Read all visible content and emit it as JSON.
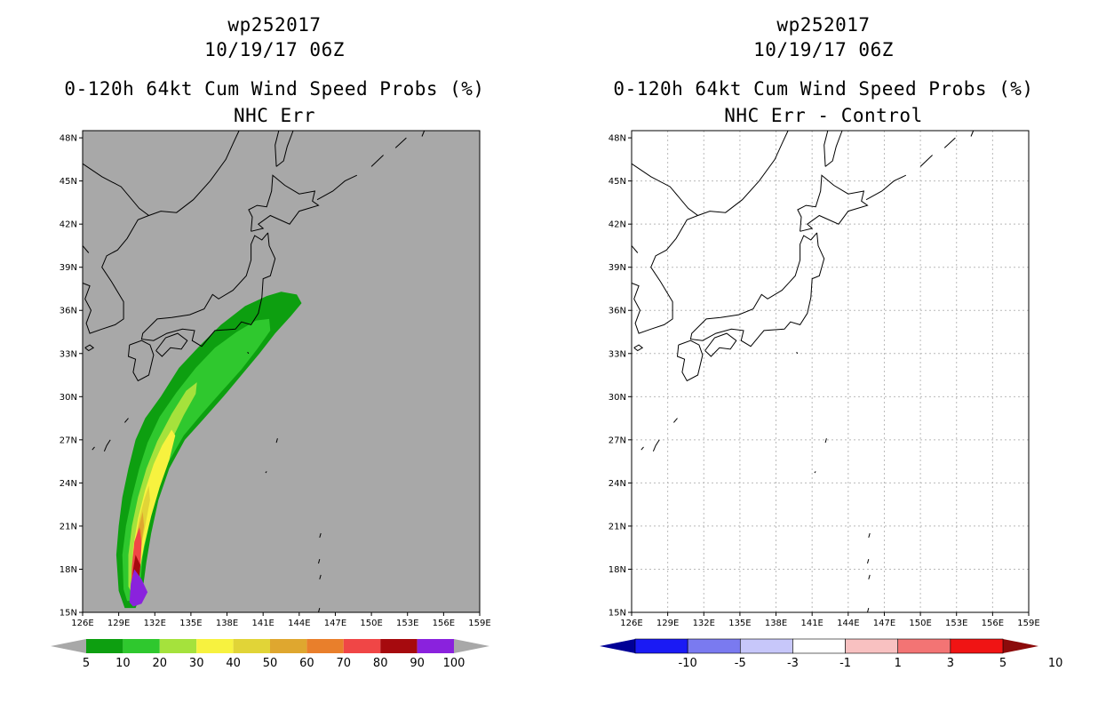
{
  "colors": {
    "ocean_left": "#a8a8a8",
    "coast": "#000000",
    "grid": "#b9b9b9",
    "prob_colors": [
      "#0d9f10",
      "#2fc82e",
      "#a5e23c",
      "#f7f23f",
      "#e1d437",
      "#dfa72f",
      "#e97f2b",
      "#f04646",
      "#a60a0e",
      "#8a22dd"
    ],
    "diff_colors": [
      "#000096",
      "#1a1af5",
      "#7a7af0",
      "#c7c7fa",
      "#ffffff",
      "#f8c1c1",
      "#f37474",
      "#f01414",
      "#8c0b0b"
    ]
  },
  "map_extent": {
    "lon": [
      126,
      159
    ],
    "lat": [
      15,
      48.5
    ]
  },
  "lon_ticks": [
    "126E",
    "129E",
    "132E",
    "135E",
    "138E",
    "141E",
    "144E",
    "147E",
    "150E",
    "153E",
    "156E",
    "159E"
  ],
  "lat_ticks": [
    "48N",
    "45N",
    "42N",
    "39N",
    "36N",
    "33N",
    "30N",
    "27N",
    "24N",
    "21N",
    "18N",
    "15N"
  ],
  "left_panel": {
    "title_line1": "wp252017",
    "title_line2": "10/19/17 06Z",
    "title_line3": "0-120h 64kt Cum Wind Speed Probs (%)",
    "title_line4": "NHC Err",
    "colorbar_labels": [
      "5",
      "10",
      "20",
      "30",
      "40",
      "50",
      "60",
      "70",
      "80",
      "90",
      "100"
    ]
  },
  "right_panel": {
    "title_line1": "wp252017",
    "title_line2": "10/19/17 06Z",
    "title_line3": "0-120h 64kt Cum Wind Speed Probs (%)",
    "title_line4": "NHC Err - Control",
    "colorbar_labels": [
      "-10",
      "-5",
      "-3",
      "-1",
      "1",
      "3",
      "5",
      "10"
    ]
  },
  "probability_field": {
    "units": "%",
    "contour_levels": [
      5,
      10,
      20,
      30,
      40,
      50,
      60,
      70,
      80,
      90,
      100
    ],
    "swath": [
      {
        "level": 5,
        "path": [
          [
            129.0,
            16.5
          ],
          [
            128.8,
            19
          ],
          [
            129.0,
            21
          ],
          [
            129.3,
            23
          ],
          [
            129.8,
            25
          ],
          [
            130.4,
            27
          ],
          [
            131.2,
            28.5
          ],
          [
            132.5,
            30
          ],
          [
            134,
            32
          ],
          [
            135.8,
            33.6
          ],
          [
            137.5,
            35
          ],
          [
            139.5,
            36.3
          ],
          [
            141.3,
            37
          ],
          [
            142.5,
            37.3
          ],
          [
            143.8,
            37.1
          ],
          [
            144.2,
            36.5
          ],
          [
            143.3,
            35.6
          ],
          [
            142.0,
            34.4
          ],
          [
            140.7,
            33.0
          ],
          [
            139.3,
            31.6
          ],
          [
            137.7,
            30.0
          ],
          [
            136.0,
            28.4
          ],
          [
            134.5,
            27.0
          ],
          [
            133.2,
            25.0
          ],
          [
            132.3,
            22.8
          ],
          [
            131.7,
            20.5
          ],
          [
            131.3,
            18.5
          ],
          [
            131.0,
            16.6
          ],
          [
            130.4,
            15.3
          ],
          [
            129.5,
            15.3
          ]
        ]
      },
      {
        "level": 10,
        "path": [
          [
            129.4,
            16.6
          ],
          [
            129.3,
            19
          ],
          [
            129.6,
            21
          ],
          [
            130.1,
            23
          ],
          [
            130.7,
            25
          ],
          [
            131.4,
            26.8
          ],
          [
            132.4,
            28.6
          ],
          [
            133.8,
            30.3
          ],
          [
            135.4,
            32
          ],
          [
            137.0,
            33.4
          ],
          [
            138.8,
            34.5
          ],
          [
            140.4,
            35.3
          ],
          [
            141.5,
            35.4
          ],
          [
            141.6,
            34.6
          ],
          [
            140.5,
            33.3
          ],
          [
            139.2,
            31.9
          ],
          [
            137.6,
            30.4
          ],
          [
            135.9,
            28.8
          ],
          [
            134.4,
            27.3
          ],
          [
            133.1,
            25.4
          ],
          [
            132.1,
            23.1
          ],
          [
            131.5,
            21
          ],
          [
            131.0,
            18.9
          ],
          [
            130.8,
            17
          ],
          [
            130.3,
            15.8
          ],
          [
            129.7,
            15.8
          ]
        ]
      },
      {
        "level": 20,
        "path": [
          [
            129.8,
            16.8
          ],
          [
            129.8,
            19
          ],
          [
            130.1,
            21
          ],
          [
            130.6,
            23
          ],
          [
            131.3,
            25
          ],
          [
            132.2,
            26.9
          ],
          [
            133.4,
            28.8
          ],
          [
            134.6,
            30.4
          ],
          [
            135.5,
            31.0
          ],
          [
            135.4,
            30.2
          ],
          [
            134.4,
            28.7
          ],
          [
            133.3,
            26.8
          ],
          [
            132.5,
            24.8
          ],
          [
            131.8,
            22.6
          ],
          [
            131.2,
            20.5
          ],
          [
            130.8,
            18.5
          ],
          [
            130.5,
            16.9
          ],
          [
            130.1,
            16.3
          ]
        ]
      },
      {
        "level": 30,
        "path": [
          [
            130.1,
            17.0
          ],
          [
            130.2,
            19.5
          ],
          [
            130.6,
            21.5
          ],
          [
            131.2,
            23.5
          ],
          [
            131.9,
            25.3
          ],
          [
            132.6,
            26.6
          ],
          [
            133.4,
            27.7
          ],
          [
            133.7,
            27.3
          ],
          [
            133.2,
            25.6
          ],
          [
            132.4,
            23.7
          ],
          [
            131.7,
            21.7
          ],
          [
            131.1,
            19.6
          ],
          [
            130.7,
            17.7
          ],
          [
            130.4,
            16.8
          ]
        ]
      },
      {
        "level": 40,
        "path": [
          [
            130.2,
            17.2
          ],
          [
            130.3,
            19.5
          ],
          [
            130.7,
            21.5
          ],
          [
            131.1,
            22.8
          ],
          [
            131.5,
            23.8
          ],
          [
            131.6,
            22.8
          ],
          [
            131.2,
            21.0
          ],
          [
            130.8,
            19.3
          ],
          [
            130.5,
            17.5
          ]
        ]
      },
      {
        "level": 50,
        "path": [
          [
            130.2,
            17.2
          ],
          [
            130.3,
            19.0
          ],
          [
            130.6,
            20.7
          ],
          [
            131.0,
            22.0
          ],
          [
            131.1,
            21.0
          ],
          [
            130.8,
            19.4
          ],
          [
            130.5,
            17.5
          ]
        ]
      },
      {
        "level": 60,
        "path": [
          [
            130.2,
            17.0
          ],
          [
            130.2,
            18.8
          ],
          [
            130.5,
            20.2
          ],
          [
            130.8,
            20.9
          ],
          [
            130.9,
            20.0
          ],
          [
            130.7,
            18.8
          ],
          [
            130.5,
            17.3
          ]
        ]
      },
      {
        "level": 70,
        "path": [
          [
            130.0,
            16.5
          ],
          [
            130.1,
            18.2
          ],
          [
            130.3,
            19.9
          ],
          [
            130.7,
            20.9
          ],
          [
            130.9,
            19.8
          ],
          [
            130.8,
            18.2
          ],
          [
            130.6,
            16.8
          ]
        ]
      },
      {
        "level": 80,
        "path": [
          [
            130.1,
            16.8
          ],
          [
            130.2,
            18.0
          ],
          [
            130.4,
            19.0
          ],
          [
            130.8,
            18.3
          ],
          [
            130.7,
            17.3
          ],
          [
            130.5,
            16.5
          ]
        ]
      },
      {
        "level": 90,
        "path": [
          [
            129.9,
            15.7
          ],
          [
            130.0,
            17.0
          ],
          [
            130.3,
            18.0
          ],
          [
            130.9,
            17.3
          ],
          [
            131.4,
            16.4
          ],
          [
            130.9,
            15.6
          ],
          [
            130.2,
            15.4
          ]
        ]
      }
    ]
  }
}
